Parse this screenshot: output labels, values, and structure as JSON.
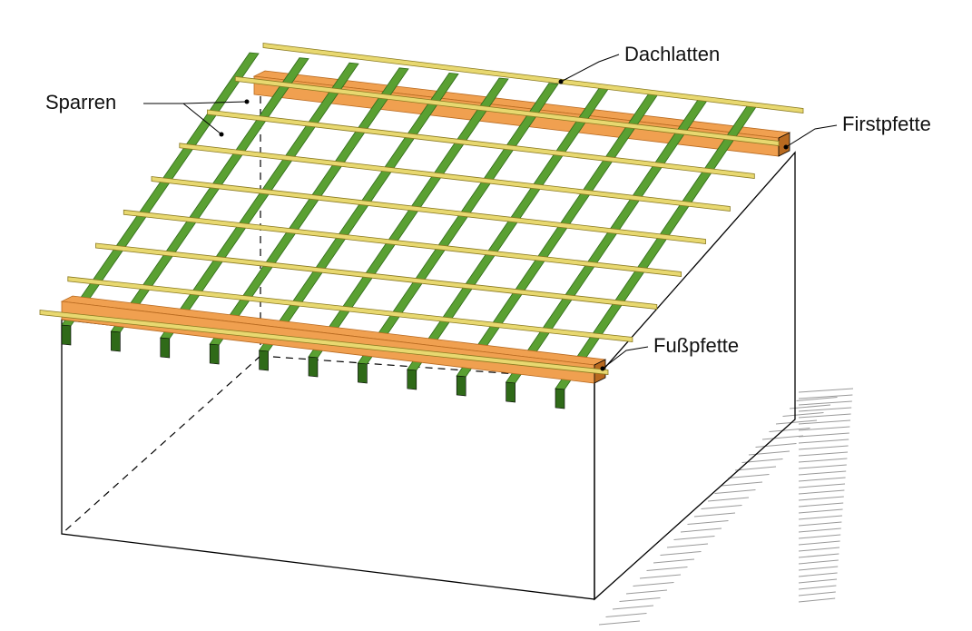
{
  "labels": {
    "dachlatten": "Dachlatten",
    "sparren": "Sparren",
    "firstpfette": "Firstpfette",
    "fusspfette": "Fußpfette"
  },
  "colors": {
    "rafter": "#5aa032",
    "rafter_dark": "#2f6a18",
    "batten": "#e8d870",
    "batten_dark": "#8a7a20",
    "purlin": "#f0a050",
    "purlin_dark": "#b86a20",
    "line": "#000000",
    "hatch": "#9a9a9a"
  },
  "counts": {
    "rafters": 11,
    "battens": 9
  }
}
